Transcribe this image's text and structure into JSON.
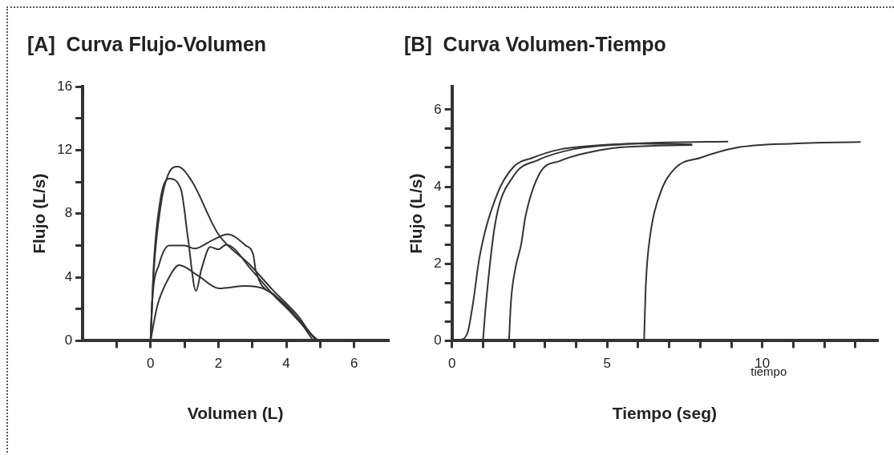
{
  "chart_data": [
    {
      "type": "line",
      "title": "[A]  Curva Flujo-Volumen",
      "xlabel": "Volumen (L)",
      "ylabel": "Flujo (L/s)",
      "xlim": [
        -2,
        7
      ],
      "ylim": [
        0,
        16
      ],
      "xticks": [
        {
          "value": -1,
          "label": null
        },
        0,
        {
          "value": 1,
          "label": null
        },
        2,
        {
          "value": 3,
          "label": null
        },
        4,
        {
          "value": 5,
          "label": null
        },
        6
      ],
      "yticks": [
        0,
        {
          "value": 2,
          "label": null
        },
        4,
        {
          "value": 6,
          "label": null
        },
        8,
        {
          "value": 10,
          "label": null
        },
        12,
        {
          "value": 14,
          "label": null
        },
        16
      ],
      "grid": false,
      "legend": false,
      "marker": "none",
      "line_style": "solid",
      "series": [
        {
          "color": "#333333",
          "x": [
            0,
            0.1,
            0.3,
            0.55,
            0.8,
            1.2,
            2,
            2.94,
            3.6,
            4.37,
            4.7,
            4.95
          ],
          "values": [
            0,
            4.5,
            8.5,
            10.6,
            10.96,
            10.1,
            6.7,
            4.76,
            3.2,
            1.5,
            0.5,
            0
          ]
        },
        {
          "color": "#333333",
          "x": [
            0,
            0.1,
            0.3,
            0.55,
            0.9,
            1.1,
            1.34,
            1.5,
            1.76,
            2.0,
            2.23,
            3.0,
            3.7,
            4.3,
            4.9
          ],
          "values": [
            0,
            5,
            9,
            10.2,
            9.5,
            6.5,
            3.13,
            4.5,
            5.9,
            5.75,
            6.05,
            4.4,
            2.7,
            1.5,
            0
          ]
        },
        {
          "color": "#333333",
          "x": [
            0,
            0.05,
            0.25,
            0.55,
            1.0,
            1.3,
            1.8,
            2.27,
            2.8,
            3.03,
            3.1,
            3.7,
            4.3,
            4.9
          ],
          "values": [
            0,
            2.5,
            4.8,
            6.0,
            6.0,
            5.8,
            6.3,
            6.7,
            6.0,
            5.4,
            4.43,
            2.8,
            1.4,
            0
          ]
        },
        {
          "color": "#333333",
          "x": [
            0,
            0.2,
            0.55,
            0.84,
            1.4,
            2.02,
            2.8,
            3.3,
            3.8,
            4.3,
            4.8
          ],
          "values": [
            0,
            2.2,
            4.0,
            4.76,
            4.1,
            3.3,
            3.45,
            3.3,
            2.6,
            1.5,
            0
          ]
        }
      ]
    },
    {
      "type": "line",
      "title": "[B]  Curva Volumen-Tiempo",
      "xlabel": "Tiempo (seg)",
      "ylabel": "Flujo (L/s)",
      "annotations": [
        "tiempo"
      ],
      "xlim": [
        0,
        13.7
      ],
      "ylim": [
        0,
        6.6
      ],
      "xticks": [
        0,
        {
          "value": 1,
          "label": null
        },
        {
          "value": 2,
          "label": null
        },
        {
          "value": 3,
          "label": null
        },
        {
          "value": 4,
          "label": null
        },
        5,
        {
          "value": 6,
          "label": null
        },
        {
          "value": 7,
          "label": null
        },
        {
          "value": 8,
          "label": null
        },
        {
          "value": 9,
          "label": null
        },
        10,
        {
          "value": 11,
          "label": null
        },
        {
          "value": 12,
          "label": null
        },
        {
          "value": 13,
          "label": null
        }
      ],
      "yticks": [
        0,
        {
          "value": 0.5,
          "label": null
        },
        {
          "value": 1,
          "label": null
        },
        {
          "value": 1.5,
          "label": null
        },
        2,
        {
          "value": 2.5,
          "label": null
        },
        {
          "value": 3,
          "label": null
        },
        {
          "value": 3.5,
          "label": null
        },
        4,
        {
          "value": 4.5,
          "label": null
        },
        {
          "value": 5,
          "label": null
        },
        {
          "value": 5.5,
          "label": null
        },
        6
      ],
      "grid": false,
      "legend": false,
      "marker": "none",
      "line_style": "solid",
      "series": [
        {
          "color": "#333333",
          "x": [
            0.24,
            0.5,
            0.68,
            0.89,
            1.45,
            1.98,
            2.6,
            3.44,
            4.5,
            6,
            7.74
          ],
          "values": [
            0,
            0.2,
            0.98,
            2.18,
            3.79,
            4.51,
            4.75,
            4.96,
            5.06,
            5.12,
            5.1
          ]
        },
        {
          "color": "#333333",
          "x": [
            1.0,
            1.1,
            1.4,
            1.98,
            2.8,
            3.9,
            5.5,
            7,
            8.9
          ],
          "values": [
            0,
            1.0,
            3.07,
            4.27,
            4.7,
            4.97,
            5.1,
            5.15,
            5.17
          ]
        },
        {
          "color": "#333333",
          "x": [
            1.84,
            1.9,
            2.05,
            2.23,
            2.37,
            2.83,
            3.48,
            5,
            6.5,
            7.74
          ],
          "values": [
            0,
            1.0,
            1.9,
            2.5,
            3.23,
            4.35,
            4.67,
            4.98,
            5.06,
            5.08
          ]
        },
        {
          "color": "#333333",
          "x": [
            6.19,
            6.25,
            6.39,
            6.7,
            7.18,
            8,
            9.15,
            11,
            13.17
          ],
          "values": [
            0,
            1.5,
            2.75,
            3.8,
            4.47,
            4.75,
            5.01,
            5.12,
            5.16
          ]
        }
      ]
    }
  ]
}
